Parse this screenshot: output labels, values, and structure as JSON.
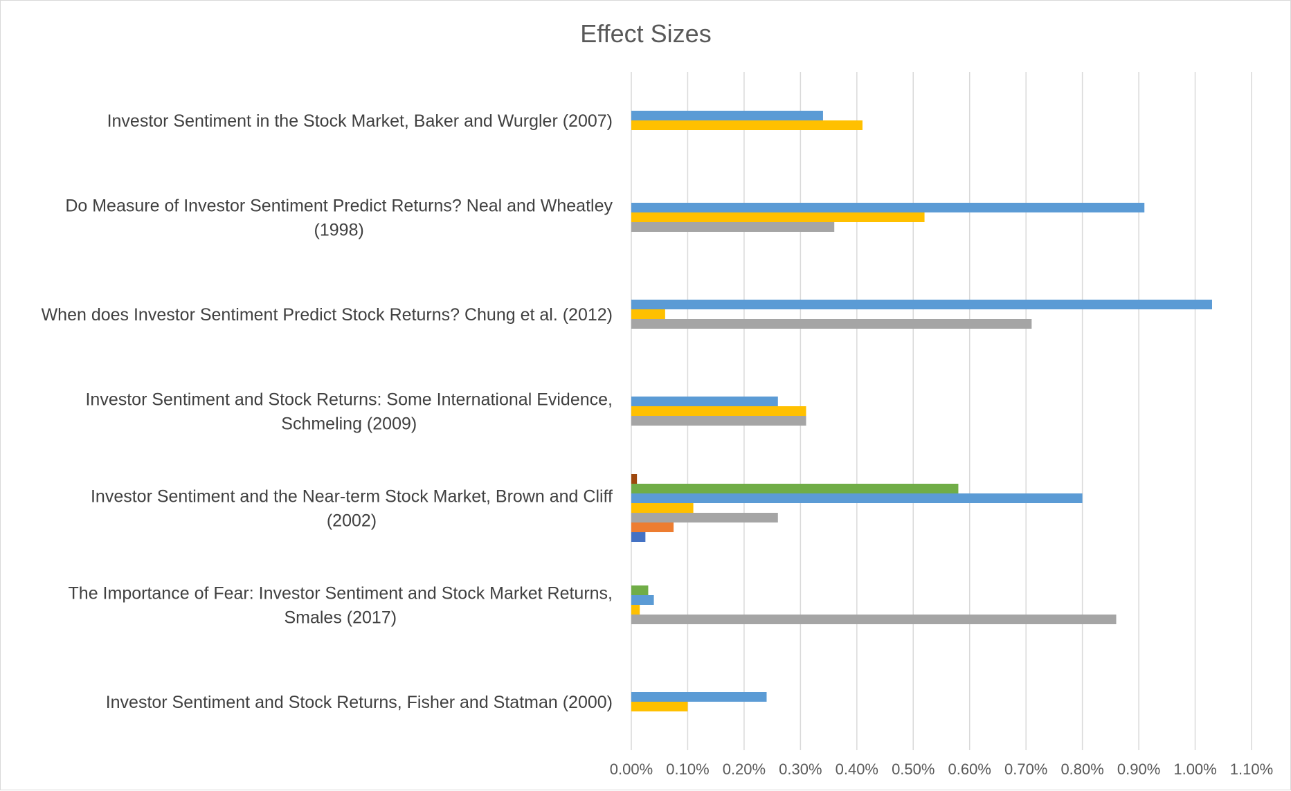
{
  "chart_data": {
    "type": "bar",
    "orientation": "horizontal",
    "title": "Effect Sizes",
    "xlabel": "",
    "ylabel": "",
    "xlim": [
      0,
      1.1
    ],
    "x_unit": "%",
    "x_ticks": [
      "0.00%",
      "0.10%",
      "0.20%",
      "0.30%",
      "0.40%",
      "0.50%",
      "0.60%",
      "0.70%",
      "0.80%",
      "0.90%",
      "1.00%",
      "1.10%"
    ],
    "grid": "vertical",
    "legend": "none",
    "categories": [
      {
        "lines": [
          "Investor Sentiment in the Stock Market, Baker and Wurgler (2007)"
        ]
      },
      {
        "lines": [
          "Do Measure of Investor Sentiment Predict Returns? Neal and  Wheatley",
          "(1998)"
        ]
      },
      {
        "lines": [
          "When does Investor Sentiment Predict Stock Returns? Chung et al. (2012)"
        ]
      },
      {
        "lines": [
          "Investor Sentiment and Stock Returns: Some International Evidence,",
          "Schmeling (2009)"
        ]
      },
      {
        "lines": [
          "Investor Sentiment and the Near-term Stock Market, Brown and Cliff",
          "(2002)"
        ]
      },
      {
        "lines": [
          "The Importance of Fear: Investor Sentiment and Stock Market Returns,",
          "Smales (2017)"
        ]
      },
      {
        "lines": [
          "Investor Sentiment and Stock Returns, Fisher and Statman (2000)"
        ]
      }
    ],
    "series_order_top_to_bottom": [
      "dark-red",
      "green",
      "light-blue",
      "gold",
      "gray",
      "orange",
      "dark-blue"
    ],
    "series": [
      {
        "key": "dark-red",
        "color": "#9e480e",
        "values": [
          null,
          null,
          null,
          null,
          0.01,
          null,
          null
        ]
      },
      {
        "key": "green",
        "color": "#70ad47",
        "values": [
          null,
          null,
          null,
          null,
          0.58,
          0.03,
          null
        ]
      },
      {
        "key": "light-blue",
        "color": "#5b9bd5",
        "values": [
          0.34,
          0.91,
          1.03,
          0.26,
          0.8,
          0.04,
          0.24
        ]
      },
      {
        "key": "gold",
        "color": "#ffc000",
        "values": [
          0.41,
          0.52,
          0.06,
          0.31,
          0.11,
          0.015,
          0.1
        ]
      },
      {
        "key": "gray",
        "color": "#a5a5a5",
        "values": [
          null,
          0.36,
          0.71,
          0.31,
          0.26,
          0.86,
          null
        ]
      },
      {
        "key": "orange",
        "color": "#ed7d31",
        "values": [
          null,
          null,
          null,
          null,
          0.075,
          null,
          null
        ]
      },
      {
        "key": "dark-blue",
        "color": "#4472c4",
        "values": [
          null,
          null,
          null,
          null,
          0.025,
          null,
          null
        ]
      }
    ]
  }
}
